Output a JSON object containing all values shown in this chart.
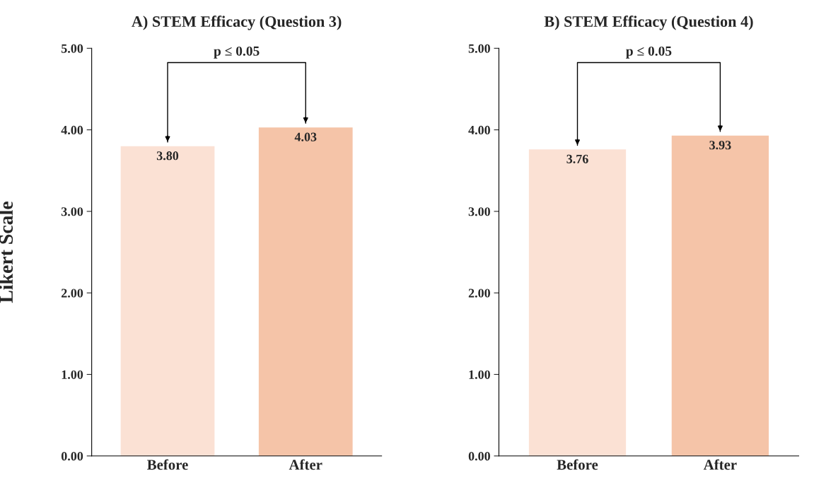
{
  "chart_data": [
    {
      "type": "bar",
      "title": "A) STEM Efficacy (Question 3)",
      "ylabel": "Likert Scale",
      "categories": [
        "Before",
        "After"
      ],
      "values": [
        3.8,
        4.03
      ],
      "value_labels": [
        "3.80",
        "4.03"
      ],
      "colors": [
        "#fbe1d4",
        "#f5c4a8"
      ],
      "ylim": [
        0,
        5
      ],
      "yticks": [
        {
          "value": 0,
          "label": "0.00"
        },
        {
          "value": 1,
          "label": "1.00"
        },
        {
          "value": 2,
          "label": "2.00"
        },
        {
          "value": 3,
          "label": "3.00"
        },
        {
          "value": 4,
          "label": "4.00"
        },
        {
          "value": 5,
          "label": "5.00"
        }
      ],
      "grid": false,
      "legend": false,
      "annotations": [
        "p ≤ 0.05"
      ]
    },
    {
      "type": "bar",
      "title": "B) STEM Efficacy (Question 4)",
      "categories": [
        "Before",
        "After"
      ],
      "values": [
        3.76,
        3.93
      ],
      "value_labels": [
        "3.76",
        "3.93"
      ],
      "colors": [
        "#fbe1d4",
        "#f5c4a8"
      ],
      "ylim": [
        0,
        5
      ],
      "yticks": [
        {
          "value": 0,
          "label": "0.00"
        },
        {
          "value": 1,
          "label": "1.00"
        },
        {
          "value": 2,
          "label": "2.00"
        },
        {
          "value": 3,
          "label": "3.00"
        },
        {
          "value": 4,
          "label": "4.00"
        },
        {
          "value": 5,
          "label": "5.00"
        }
      ],
      "grid": false,
      "legend": false,
      "annotations": [
        "p ≤ 0.05"
      ]
    }
  ]
}
